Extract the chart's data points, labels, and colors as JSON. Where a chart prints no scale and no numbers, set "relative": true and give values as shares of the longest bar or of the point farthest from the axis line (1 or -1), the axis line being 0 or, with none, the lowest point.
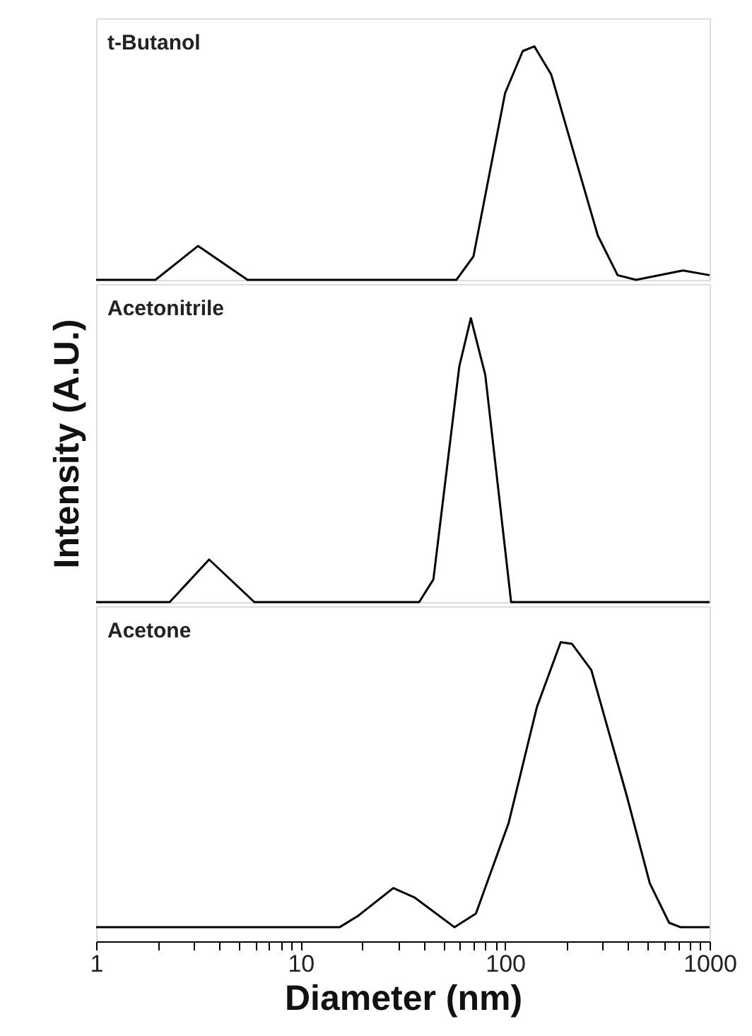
{
  "chart_data": [
    {
      "type": "line",
      "relative": true,
      "log": "x",
      "xlim": [
        1,
        1000
      ],
      "tick_labels": false,
      "xticks": [
        1,
        10,
        100,
        1000
      ],
      "series": [
        {
          "name": "t-Butanol",
          "color": "#000000",
          "x": [
            1,
            1.95,
            3.15,
            5.5,
            57.8,
            70,
            100,
            122,
            139,
            168,
            219,
            284,
            355,
            437,
            741,
            1000
          ],
          "values": [
            0,
            0,
            0.145,
            0,
            0,
            0.1,
            0.8,
            0.98,
            1,
            0.88,
            0.53,
            0.19,
            0.02,
            0,
            0.04,
            0.02
          ]
        }
      ]
    },
    {
      "type": "line",
      "relative": true,
      "log": "x",
      "xlim": [
        1,
        1000
      ],
      "tick_labels": false,
      "ylabel": "Intensity (A.U.)",
      "xticks": [
        1,
        10,
        100,
        1000
      ],
      "series": [
        {
          "name": "Acetonitrile",
          "color": "#000000",
          "x": [
            1,
            2.29,
            3.57,
            5.94,
            38,
            44.6,
            59.7,
            68,
            80,
            107,
            1000
          ],
          "values": [
            0,
            0,
            0.15,
            0,
            0,
            0.08,
            0.83,
            1,
            0.8,
            0,
            0
          ]
        }
      ]
    },
    {
      "type": "line",
      "relative": true,
      "log": "x",
      "xlim": [
        1,
        1000
      ],
      "tick_labels": "x",
      "xlabel": "Diameter (nm)",
      "xticks": [
        1,
        {
          "value": 2,
          "label": null
        },
        {
          "value": 3,
          "label": null
        },
        {
          "value": 4,
          "label": null
        },
        {
          "value": 5,
          "label": null
        },
        {
          "value": 6,
          "label": null
        },
        {
          "value": 7,
          "label": null
        },
        {
          "value": 8,
          "label": null
        },
        {
          "value": 9,
          "label": null
        },
        10,
        {
          "value": 20,
          "label": null
        },
        {
          "value": 30,
          "label": null
        },
        {
          "value": 40,
          "label": null
        },
        {
          "value": 50,
          "label": null
        },
        {
          "value": 60,
          "label": null
        },
        {
          "value": 70,
          "label": null
        },
        {
          "value": 80,
          "label": null
        },
        {
          "value": 90,
          "label": null
        },
        100,
        {
          "value": 200,
          "label": null
        },
        {
          "value": 300,
          "label": null
        },
        {
          "value": 400,
          "label": null
        },
        {
          "value": 500,
          "label": null
        },
        {
          "value": 600,
          "label": null
        },
        {
          "value": 700,
          "label": null
        },
        {
          "value": 800,
          "label": null
        },
        {
          "value": 900,
          "label": null
        },
        1000
      ],
      "series": [
        {
          "name": "Acetone",
          "color": "#000000",
          "x": [
            1,
            15.5,
            19.1,
            28.4,
            36,
            56.6,
            72,
            104,
            143,
            187,
            212,
            264,
            393,
            510,
            634,
            722,
            1000
          ],
          "values": [
            0.047,
            0.047,
            0.085,
            0.178,
            0.147,
            0.047,
            0.093,
            0.395,
            0.783,
            1.0,
            0.995,
            0.907,
            0.488,
            0.194,
            0.062,
            0.047,
            0.047
          ]
        }
      ]
    }
  ]
}
